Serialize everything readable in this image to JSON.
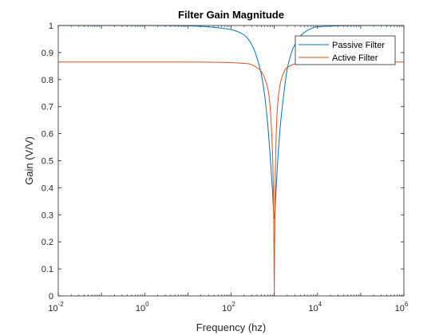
{
  "chart_data": {
    "type": "line",
    "title": "Filter Gain Magnitude",
    "xlabel": "Frequency (hz)",
    "ylabel": "Gain (V/V)",
    "xscale": "log",
    "xlim": [
      0.01,
      1000000
    ],
    "ylim": [
      0,
      1
    ],
    "x_ticks": [
      {
        "base": "10",
        "exp": "-2",
        "value": 0.01
      },
      {
        "base": "10",
        "exp": "0",
        "value": 1
      },
      {
        "base": "10",
        "exp": "2",
        "value": 100
      },
      {
        "base": "10",
        "exp": "4",
        "value": 10000
      },
      {
        "base": "10",
        "exp": "6",
        "value": 1000000
      }
    ],
    "y_ticks": [
      "0",
      "0.1",
      "0.2",
      "0.3",
      "0.4",
      "0.5",
      "0.6",
      "0.7",
      "0.8",
      "0.9",
      "1"
    ],
    "grid": false,
    "legend": "top-right",
    "series": [
      {
        "name": "Passive Filter",
        "color": "#0072BD",
        "x": [
          0.01,
          1,
          10,
          30,
          100,
          200,
          300,
          400,
          500,
          600,
          700,
          800,
          900,
          950,
          1000,
          1050,
          1100,
          1200,
          1400,
          1700,
          2000,
          2500,
          3000,
          4000,
          5000,
          7000,
          10000,
          30000,
          100000,
          1000000
        ],
        "y": [
          1.0,
          1.0,
          0.999,
          0.995,
          0.985,
          0.965,
          0.93,
          0.88,
          0.82,
          0.74,
          0.64,
          0.52,
          0.4,
          0.33,
          0.285,
          0.33,
          0.39,
          0.5,
          0.64,
          0.76,
          0.84,
          0.9,
          0.93,
          0.96,
          0.975,
          0.988,
          0.995,
          0.999,
          1.0,
          1.0
        ]
      },
      {
        "name": "Active Filter",
        "color": "#D95319",
        "x": [
          0.01,
          1,
          10,
          50,
          100,
          200,
          300,
          500,
          700,
          800,
          900,
          950,
          980,
          1000,
          1020,
          1050,
          1100,
          1200,
          1400,
          1700,
          2000,
          3000,
          5000,
          10000,
          100000,
          1000000
        ],
        "y": [
          0.865,
          0.865,
          0.865,
          0.864,
          0.863,
          0.86,
          0.855,
          0.83,
          0.77,
          0.7,
          0.55,
          0.4,
          0.2,
          0.0,
          0.2,
          0.4,
          0.58,
          0.71,
          0.79,
          0.83,
          0.845,
          0.858,
          0.862,
          0.864,
          0.865,
          0.865
        ]
      }
    ]
  }
}
